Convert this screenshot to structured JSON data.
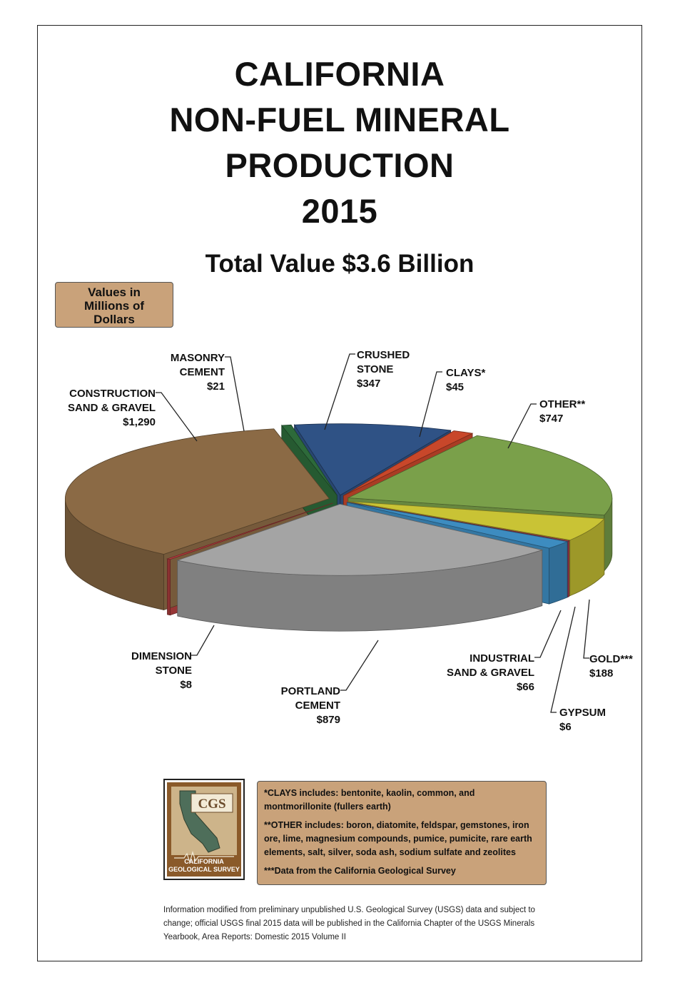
{
  "chart_data": {
    "type": "pie",
    "title": [
      "CALIFORNIA",
      "NON-FUEL MINERAL",
      "PRODUCTION",
      "2015"
    ],
    "subtitle": "Total Value $3.6 Billion",
    "units_note": [
      "Values in",
      "Millions of",
      "Dollars"
    ],
    "slices": [
      {
        "id": "crushed-stone",
        "label": [
          "CRUSHED",
          "STONE"
        ],
        "value": 347,
        "value_label": "$347",
        "color": "#2f5285"
      },
      {
        "id": "clays",
        "label": [
          "CLAYS*"
        ],
        "value": 45,
        "value_label": "$45",
        "color": "#c8472a"
      },
      {
        "id": "other",
        "label": [
          "OTHER**"
        ],
        "value": 747,
        "value_label": "$747",
        "color": "#7aa04a"
      },
      {
        "id": "gold",
        "label": [
          "GOLD***"
        ],
        "value": 188,
        "value_label": "$188",
        "color": "#c9c335"
      },
      {
        "id": "gypsum",
        "label": [
          "GYPSUM"
        ],
        "value": 6,
        "value_label": "$6",
        "color": "#b23f52"
      },
      {
        "id": "industrial-sand-gravel",
        "label": [
          "INDUSTRIAL",
          "SAND & GRAVEL"
        ],
        "value": 66,
        "value_label": "$66",
        "color": "#3d8cc0"
      },
      {
        "id": "portland-cement",
        "label": [
          "PORTLAND",
          "CEMENT"
        ],
        "value": 879,
        "value_label": "$879",
        "color": "#a4a4a4"
      },
      {
        "id": "dimension-stone",
        "label": [
          "DIMENSION",
          "STONE"
        ],
        "value": 8,
        "value_label": "$8",
        "color": "#b23f3f"
      },
      {
        "id": "construction-sand-gravel",
        "label": [
          "CONSTRUCTION",
          "SAND & GRAVEL"
        ],
        "value": 1290,
        "value_label": "$1,290",
        "color": "#8b6a45"
      },
      {
        "id": "masonry-cement",
        "label": [
          "MASONRY",
          "CEMENT"
        ],
        "value": 21,
        "value_label": "$21",
        "color": "#2d6a3a"
      }
    ]
  },
  "notes": [
    "*CLAYS includes: bentonite, kaolin, common, and montmorillonite (fullers earth)",
    "**OTHER includes: boron, diatomite, feldspar, gemstones, iron ore, lime, magnesium compounds, pumice, pumicite, rare earth elements, salt, silver, soda ash, sodium sulfate and zeolites",
    "***Data from the California Geological Survey"
  ],
  "logo": {
    "initials": "CGS",
    "line1": "CALIFORNIA",
    "line2": "GEOLOGICAL SURVEY",
    "color": "#8a5a2a"
  },
  "source": "Information modified from preliminary unpublished U.S. Geological Survey (USGS) data and subject to change; official USGS final 2015 data will be published in the California Chapter of the USGS Minerals Yearbook, Area Reports: Domestic 2015 Volume II"
}
